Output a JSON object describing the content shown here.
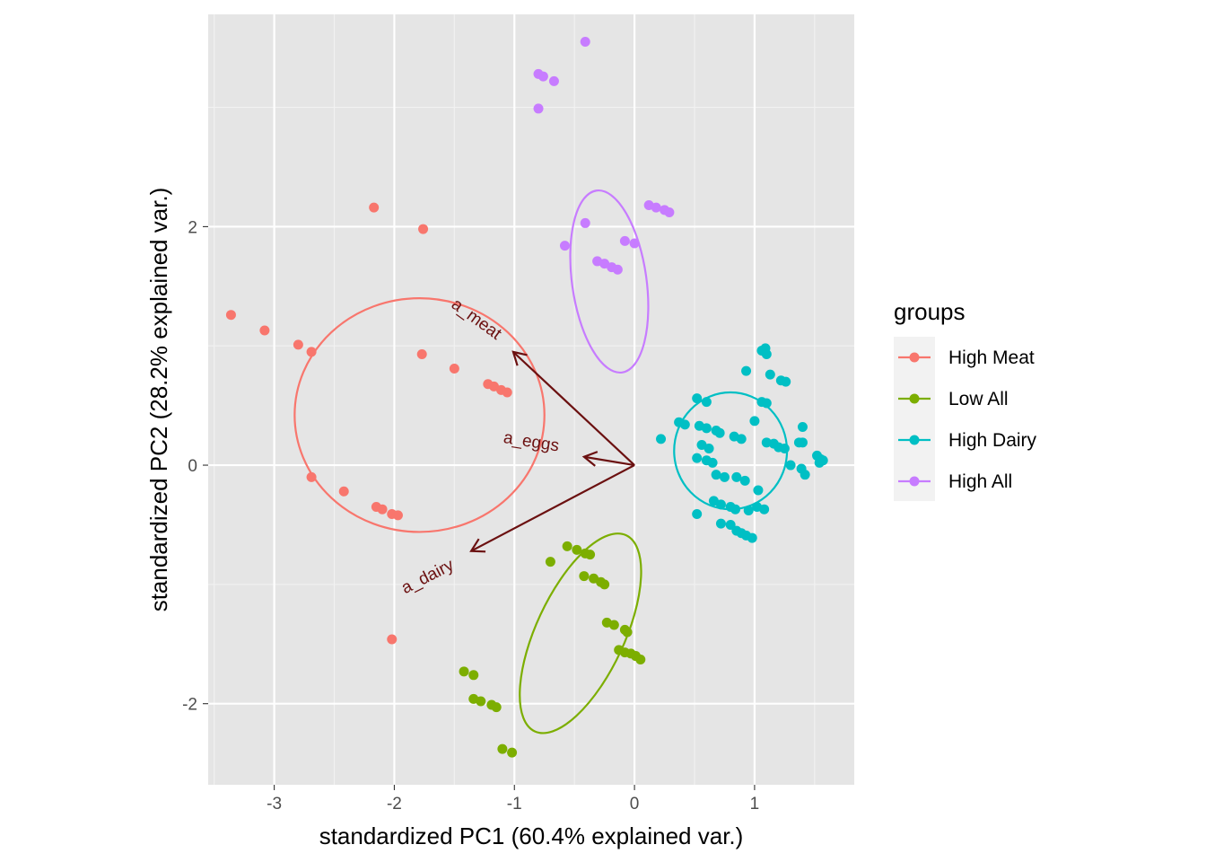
{
  "chart_data": {
    "type": "scatter",
    "title": "",
    "xlabel": "standardized PC1 (60.4% explained var.)",
    "ylabel": "standardized PC2 (28.2% explained var.)",
    "xlim": [
      -3.55,
      1.83
    ],
    "ylim": [
      -2.68,
      3.78
    ],
    "x_ticks": [
      -3,
      -2,
      -1,
      0,
      1
    ],
    "x_tick_labels": [
      "-3",
      "-2",
      "-1",
      "0",
      "1"
    ],
    "y_ticks": [
      -2,
      0,
      2
    ],
    "y_tick_labels": [
      "-2",
      "0",
      "2"
    ],
    "grid": true,
    "panel_background": "#e5e5e5",
    "legend": {
      "title": "groups",
      "position": "right"
    },
    "series": [
      {
        "name": "High Meat",
        "color": "#f8766d",
        "ellipse": {
          "cx": -1.79,
          "cy": 0.42,
          "rx": 1.04,
          "ry": 0.98,
          "angle_deg": 0
        },
        "points": [
          [
            -3.36,
            1.26
          ],
          [
            -3.08,
            1.13
          ],
          [
            -2.8,
            1.01
          ],
          [
            -2.69,
            0.95
          ],
          [
            -2.17,
            2.16
          ],
          [
            -1.76,
            1.98
          ],
          [
            -1.77,
            0.93
          ],
          [
            -1.5,
            0.81
          ],
          [
            -1.22,
            0.68
          ],
          [
            -1.17,
            0.66
          ],
          [
            -1.11,
            0.63
          ],
          [
            -1.06,
            0.61
          ],
          [
            -2.69,
            -0.1
          ],
          [
            -2.42,
            -0.22
          ],
          [
            -2.15,
            -0.35
          ],
          [
            -2.1,
            -0.37
          ],
          [
            -2.02,
            -0.41
          ],
          [
            -1.97,
            -0.42
          ],
          [
            -2.02,
            -1.46
          ]
        ]
      },
      {
        "name": "Low All",
        "color": "#7cae00",
        "ellipse": {
          "cx": -0.45,
          "cy": -1.41,
          "rx": 0.9,
          "ry": 0.37,
          "angle_deg": -65
        },
        "points": [
          [
            -0.7,
            -0.81
          ],
          [
            -0.56,
            -0.68
          ],
          [
            -0.48,
            -0.71
          ],
          [
            -0.41,
            -0.74
          ],
          [
            -0.37,
            -0.75
          ],
          [
            -0.42,
            -0.93
          ],
          [
            -0.34,
            -0.95
          ],
          [
            -0.28,
            -0.98
          ],
          [
            -0.25,
            -1.0
          ],
          [
            -0.23,
            -1.32
          ],
          [
            -0.17,
            -1.34
          ],
          [
            -0.08,
            -1.38
          ],
          [
            -0.06,
            -1.4
          ],
          [
            -0.13,
            -1.55
          ],
          [
            -0.08,
            -1.57
          ],
          [
            -0.03,
            -1.58
          ],
          [
            0.01,
            -1.6
          ],
          [
            0.05,
            -1.63
          ],
          [
            -1.42,
            -1.73
          ],
          [
            -1.34,
            -1.76
          ],
          [
            -1.34,
            -1.96
          ],
          [
            -1.28,
            -1.98
          ],
          [
            -1.19,
            -2.01
          ],
          [
            -1.15,
            -2.03
          ],
          [
            -1.1,
            -2.38
          ],
          [
            -1.02,
            -2.41
          ]
        ]
      },
      {
        "name": "High Dairy",
        "color": "#00bfc4",
        "ellipse": {
          "cx": 0.8,
          "cy": 0.12,
          "rx": 0.47,
          "ry": 0.49,
          "angle_deg": 0
        },
        "points": [
          [
            1.06,
            0.96
          ],
          [
            1.09,
            0.98
          ],
          [
            1.1,
            0.93
          ],
          [
            0.93,
            0.79
          ],
          [
            1.13,
            0.76
          ],
          [
            1.22,
            0.71
          ],
          [
            1.26,
            0.7
          ],
          [
            0.52,
            0.56
          ],
          [
            0.6,
            0.53
          ],
          [
            1.06,
            0.53
          ],
          [
            1.1,
            0.52
          ],
          [
            0.37,
            0.36
          ],
          [
            0.42,
            0.34
          ],
          [
            0.54,
            0.33
          ],
          [
            0.6,
            0.31
          ],
          [
            0.68,
            0.29
          ],
          [
            0.71,
            0.27
          ],
          [
            0.83,
            0.24
          ],
          [
            0.89,
            0.22
          ],
          [
            1.0,
            0.37
          ],
          [
            1.4,
            0.32
          ],
          [
            0.22,
            0.22
          ],
          [
            0.56,
            0.17
          ],
          [
            0.62,
            0.14
          ],
          [
            1.1,
            0.19
          ],
          [
            1.16,
            0.18
          ],
          [
            1.4,
            0.19
          ],
          [
            1.2,
            0.15
          ],
          [
            1.25,
            0.14
          ],
          [
            1.37,
            0.19
          ],
          [
            0.52,
            0.06
          ],
          [
            0.6,
            0.04
          ],
          [
            0.65,
            0.02
          ],
          [
            1.52,
            0.08
          ],
          [
            1.55,
            0.05
          ],
          [
            1.57,
            0.04
          ],
          [
            1.54,
            0.02
          ],
          [
            1.3,
            0.0
          ],
          [
            1.39,
            -0.03
          ],
          [
            1.42,
            -0.08
          ],
          [
            0.85,
            -0.1
          ],
          [
            0.92,
            -0.13
          ],
          [
            0.68,
            -0.08
          ],
          [
            0.75,
            -0.1
          ],
          [
            1.03,
            -0.21
          ],
          [
            0.66,
            -0.3
          ],
          [
            0.72,
            -0.33
          ],
          [
            0.8,
            -0.35
          ],
          [
            0.84,
            -0.37
          ],
          [
            0.95,
            -0.38
          ],
          [
            1.02,
            -0.35
          ],
          [
            1.08,
            -0.37
          ],
          [
            0.52,
            -0.41
          ],
          [
            0.72,
            -0.49
          ],
          [
            0.8,
            -0.5
          ],
          [
            0.85,
            -0.55
          ],
          [
            0.89,
            -0.57
          ],
          [
            0.93,
            -0.59
          ],
          [
            0.98,
            -0.61
          ]
        ]
      },
      {
        "name": "High All",
        "color": "#c77cff",
        "ellipse": {
          "cx": -0.21,
          "cy": 1.54,
          "rx": 0.31,
          "ry": 0.77,
          "angle_deg": -8
        },
        "points": [
          [
            -0.41,
            3.55
          ],
          [
            -0.8,
            3.28
          ],
          [
            -0.76,
            3.26
          ],
          [
            -0.67,
            3.22
          ],
          [
            -0.8,
            2.99
          ],
          [
            -0.41,
            2.03
          ],
          [
            0.12,
            2.18
          ],
          [
            0.18,
            2.16
          ],
          [
            0.25,
            2.14
          ],
          [
            0.29,
            2.12
          ],
          [
            -0.58,
            1.84
          ],
          [
            -0.08,
            1.88
          ],
          [
            0.0,
            1.86
          ],
          [
            -0.31,
            1.71
          ],
          [
            -0.25,
            1.69
          ],
          [
            -0.19,
            1.66
          ],
          [
            -0.14,
            1.64
          ]
        ]
      }
    ],
    "arrows": {
      "color": "#6b1010",
      "items": [
        {
          "label": "a_meat",
          "x": -1.01,
          "y": 0.95,
          "label_x": -1.32,
          "label_y": 1.22,
          "label_angle": 36
        },
        {
          "label": "a_eggs",
          "x": -0.42,
          "y": 0.07,
          "label_x": -0.86,
          "label_y": 0.19,
          "label_angle": 9
        },
        {
          "label": "a_dairy",
          "x": -1.36,
          "y": -0.72,
          "label_x": -1.72,
          "label_y": -0.94,
          "label_angle": -27
        }
      ]
    }
  }
}
